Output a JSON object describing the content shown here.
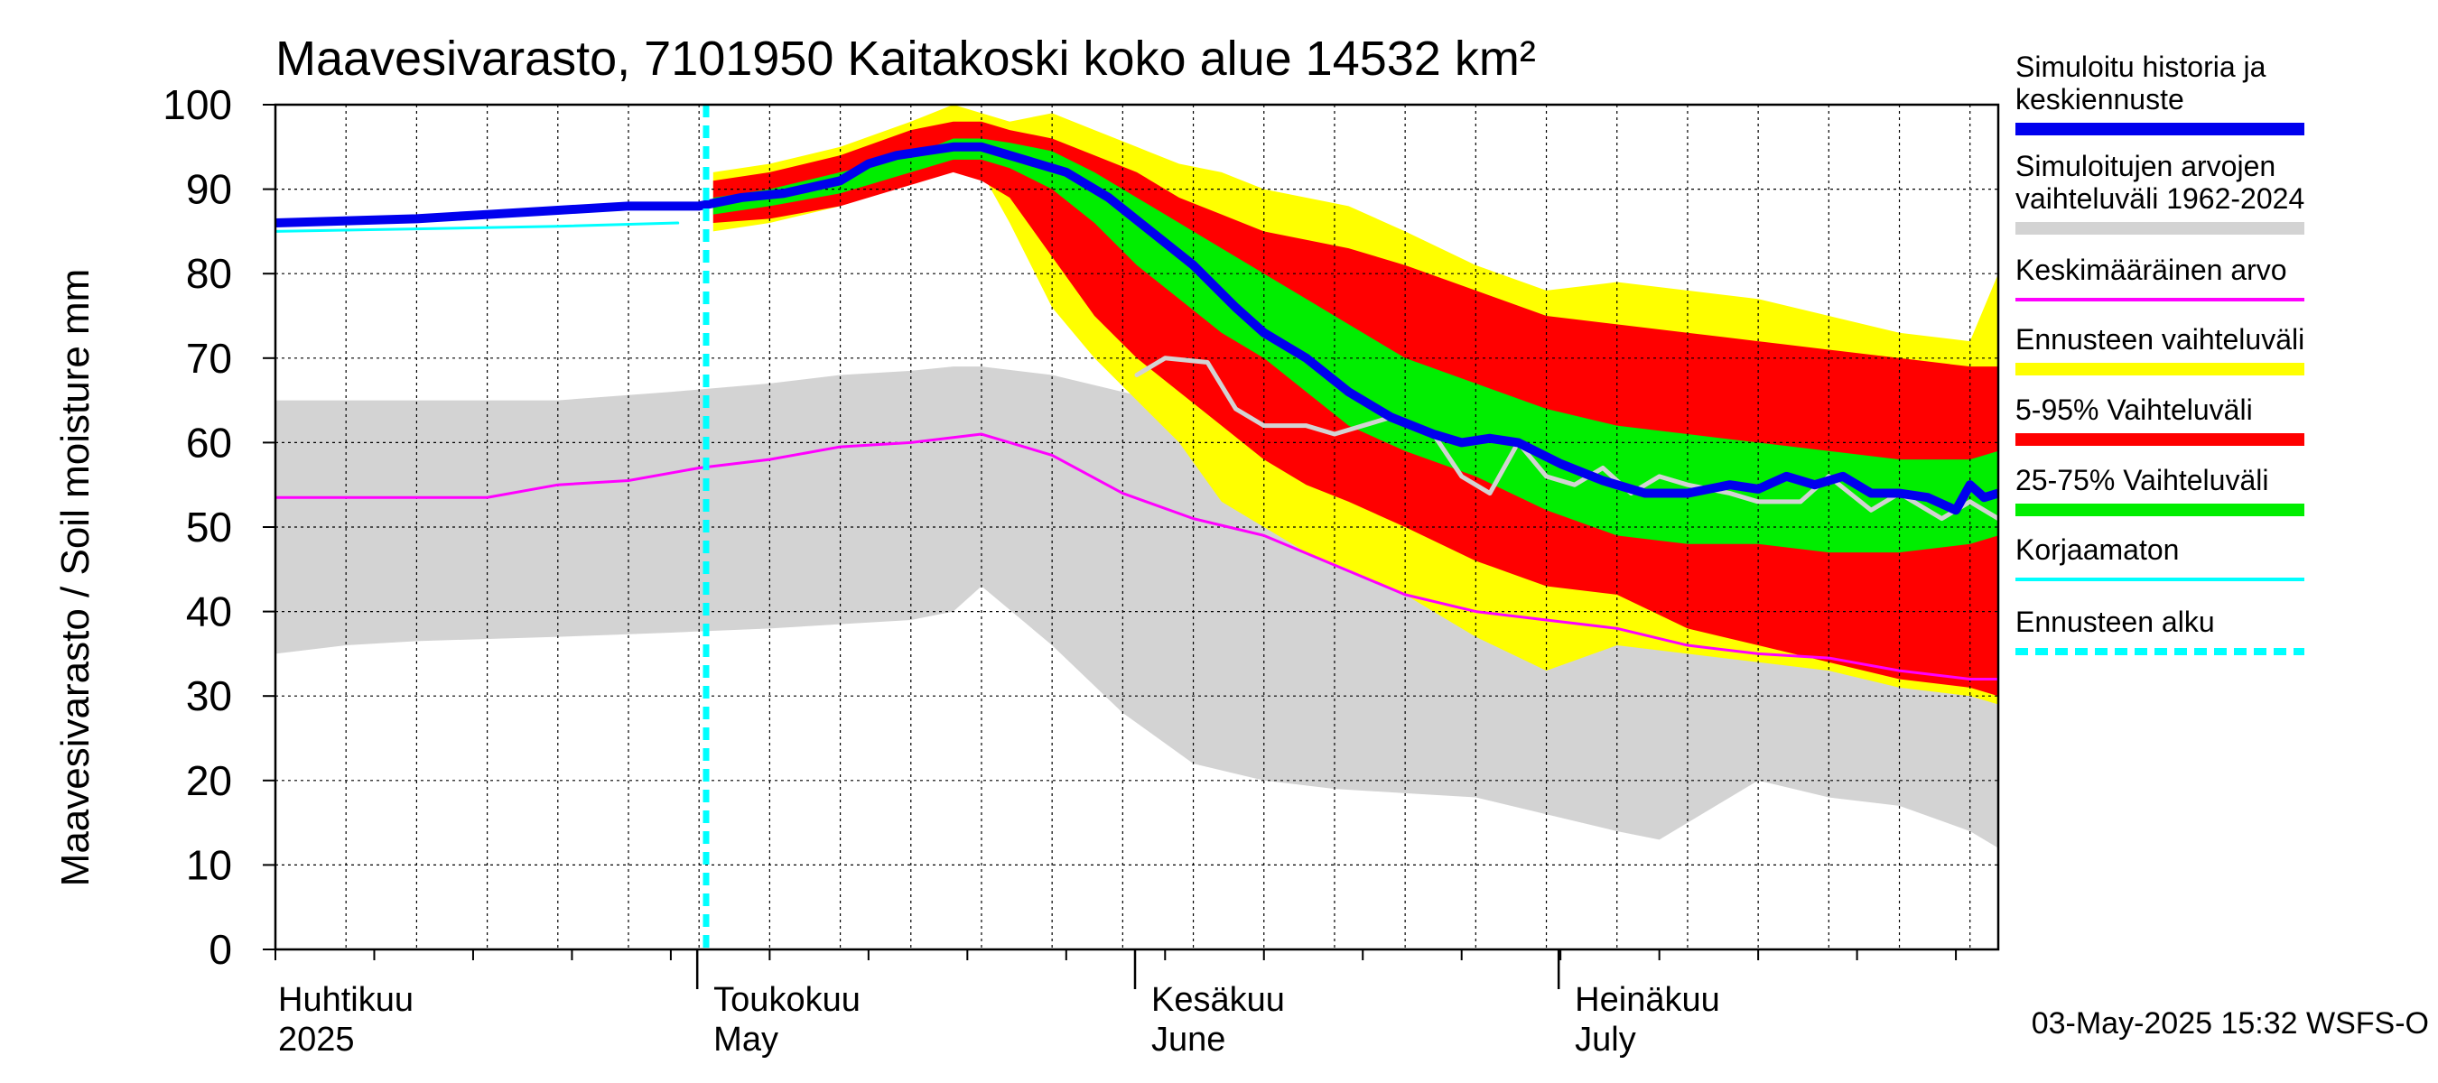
{
  "chart_data": {
    "type": "area",
    "title": "Maavesivarasto, 7101950 Kaitakoski koko alue 14532 km²",
    "ylabel": "Maavesivarasto / Soil moisture   mm",
    "xlabel": "",
    "ylim": [
      0,
      100
    ],
    "yticks": [
      0,
      10,
      20,
      30,
      40,
      50,
      60,
      70,
      80,
      90,
      100
    ],
    "xlim_days": [
      0,
      122
    ],
    "month_labels": [
      {
        "day": 0,
        "fi": "Huhtikuu",
        "en": "2025"
      },
      {
        "day": 30,
        "fi": "Toukokuu",
        "en": "May"
      },
      {
        "day": 61,
        "fi": "Kesäkuu",
        "en": "June"
      },
      {
        "day": 91,
        "fi": "Heinäkuu",
        "en": "July"
      }
    ],
    "forecast_start_day": 30.5,
    "timestamp": "03-May-2025 15:32 WSFS-O",
    "legend": [
      {
        "label": "Simuloitu historia ja keskiennuste",
        "color": "#0000ee",
        "style": "thick"
      },
      {
        "label": "Simuloitujen arvojen vaihteluväli 1962-2024",
        "color": "#d3d3d3",
        "style": "thick"
      },
      {
        "label": "Keskimääräinen arvo",
        "color": "#ff00ff",
        "style": "thin"
      },
      {
        "label": "Ennusteen vaihteluväli",
        "color": "#ffff00",
        "style": "thick"
      },
      {
        "label": "5-95% Vaihteluväli",
        "color": "#ff0000",
        "style": "thick"
      },
      {
        "label": "25-75% Vaihteluväli",
        "color": "#00ee00",
        "style": "thick"
      },
      {
        "label": "Korjaamaton",
        "color": "#00ffff",
        "style": "thin"
      },
      {
        "label": "Ennusteen alku",
        "color": "#00ffff",
        "style": "dashed"
      }
    ],
    "series": [
      {
        "name": "Simuloitujen arvojen vaihteluväli 1962-2024",
        "kind": "band",
        "color": "#d3d3d3",
        "x": [
          0,
          5,
          10,
          20,
          28,
          35,
          40,
          45,
          48,
          50,
          55,
          60,
          65,
          70,
          75,
          80,
          85,
          90,
          95,
          98,
          100,
          105,
          110,
          115,
          120,
          122
        ],
        "lower": [
          35,
          36,
          36.5,
          37,
          37.5,
          38,
          38.5,
          39,
          40,
          43,
          36,
          28,
          22,
          20,
          19,
          18.5,
          18,
          16,
          14,
          13,
          15,
          20,
          18,
          17,
          14,
          12
        ],
        "upper": [
          65,
          65,
          65,
          65,
          66,
          67,
          68,
          68.5,
          69,
          69,
          68,
          66,
          64,
          62,
          60,
          59,
          57,
          54,
          52,
          51,
          51,
          50,
          50,
          50,
          50,
          50
        ]
      },
      {
        "name": "Ennusteen vaihteluväli",
        "kind": "band",
        "color": "#ffff00",
        "x": [
          31,
          35,
          40,
          45,
          48,
          50,
          52,
          55,
          58,
          61,
          64,
          67,
          70,
          73,
          76,
          80,
          85,
          90,
          95,
          100,
          105,
          110,
          115,
          120,
          122
        ],
        "lower": [
          85,
          86,
          88,
          91,
          93,
          92,
          86,
          76,
          70,
          65,
          60,
          53,
          50,
          47,
          45,
          42,
          37,
          33,
          36,
          35,
          34,
          33,
          31,
          30,
          29
        ],
        "upper": [
          92,
          93,
          95,
          98,
          100,
          99,
          98,
          99,
          97,
          95,
          93,
          92,
          90,
          89,
          88,
          85,
          81,
          78,
          79,
          78,
          77,
          75,
          73,
          72,
          80
        ]
      },
      {
        "name": "5-95% Vaihteluväli",
        "kind": "band",
        "color": "#ff0000",
        "x": [
          31,
          35,
          40,
          45,
          48,
          50,
          52,
          55,
          58,
          61,
          64,
          67,
          70,
          73,
          76,
          80,
          85,
          90,
          95,
          100,
          105,
          110,
          115,
          120,
          122
        ],
        "lower": [
          86,
          86.5,
          88,
          90.5,
          92,
          91,
          89,
          82,
          75,
          70,
          66,
          62,
          58,
          55,
          53,
          50,
          46,
          43,
          42,
          38,
          36,
          34,
          32,
          31,
          30
        ],
        "upper": [
          91,
          92,
          94,
          97,
          98,
          98,
          97,
          96,
          94,
          92,
          89,
          87,
          85,
          84,
          83,
          81,
          78,
          75,
          74,
          73,
          72,
          71,
          70,
          69,
          69
        ]
      },
      {
        "name": "25-75% Vaihteluväli",
        "kind": "band",
        "color": "#00ee00",
        "x": [
          31,
          35,
          40,
          45,
          48,
          50,
          52,
          55,
          58,
          61,
          64,
          67,
          70,
          73,
          76,
          80,
          85,
          90,
          95,
          100,
          105,
          110,
          115,
          120,
          122
        ],
        "lower": [
          87,
          88,
          89.5,
          92,
          93.5,
          93.5,
          92.5,
          90,
          86,
          81,
          77,
          73,
          70,
          66,
          62,
          59,
          56,
          52,
          49,
          48,
          48,
          47,
          47,
          48,
          49
        ],
        "upper": [
          89,
          90,
          92,
          94,
          96,
          96,
          95.5,
          94.5,
          92,
          89,
          86,
          83,
          80,
          77,
          74,
          70,
          67,
          64,
          62,
          61,
          60,
          59,
          58,
          58,
          59
        ]
      },
      {
        "name": "Keskimääräinen arvo",
        "kind": "line",
        "color": "#ff00ff",
        "width": 3,
        "x": [
          0,
          10,
          15,
          20,
          25,
          30,
          35,
          40,
          45,
          50,
          55,
          60,
          65,
          70,
          75,
          80,
          85,
          90,
          95,
          100,
          105,
          110,
          115,
          120,
          122
        ],
        "y": [
          53.5,
          53.5,
          53.5,
          55,
          55.5,
          57,
          58,
          59.5,
          60,
          61,
          58.5,
          54,
          51,
          49,
          45.5,
          42,
          40,
          39,
          38,
          36,
          35,
          34.5,
          33,
          32,
          32
        ]
      },
      {
        "name": "Simuloitu historia (harmaa viiva)",
        "kind": "line",
        "color": "#d3d3d3",
        "width": 5,
        "x": [
          61,
          63,
          66,
          68,
          70,
          73,
          75,
          77,
          79,
          82,
          84,
          86,
          88,
          90,
          92,
          94,
          96,
          98,
          100,
          103,
          105,
          108,
          110,
          113,
          115,
          118,
          120,
          122
        ],
        "y": [
          68,
          70,
          69.5,
          64,
          62,
          62,
          61,
          62,
          63,
          61,
          56,
          54,
          60,
          56,
          55,
          57,
          54,
          56,
          55,
          54,
          53,
          53,
          56,
          52,
          54,
          51,
          53,
          51
        ]
      },
      {
        "name": "Korjaamaton",
        "kind": "line",
        "color": "#00ffff",
        "width": 3,
        "x": [
          0,
          10,
          20,
          28.5
        ],
        "y": [
          85,
          85.3,
          85.6,
          86
        ]
      },
      {
        "name": "Simuloitu historia ja keskiennuste",
        "kind": "line",
        "color": "#0000ee",
        "width": 10,
        "x": [
          0,
          10,
          15,
          20,
          25,
          30,
          33,
          36,
          40,
          42,
          44,
          46,
          48,
          50,
          53,
          56,
          59,
          62,
          65,
          68,
          70,
          73,
          76,
          79,
          82,
          84,
          86,
          88,
          91,
          94,
          97,
          100,
          103,
          105,
          107,
          109,
          111,
          113,
          115,
          117,
          119,
          120,
          121,
          122
        ],
        "y": [
          86,
          86.5,
          87,
          87.5,
          88,
          88,
          89,
          89.5,
          91,
          93,
          94,
          94.5,
          95,
          95,
          93.5,
          92,
          89,
          85,
          81,
          76,
          73,
          70,
          66,
          63,
          61,
          60,
          60.5,
          60,
          57.5,
          55.5,
          54,
          54,
          55,
          54.5,
          56,
          55,
          56,
          54,
          54,
          53.5,
          52,
          55,
          53.5,
          54
        ]
      }
    ]
  }
}
